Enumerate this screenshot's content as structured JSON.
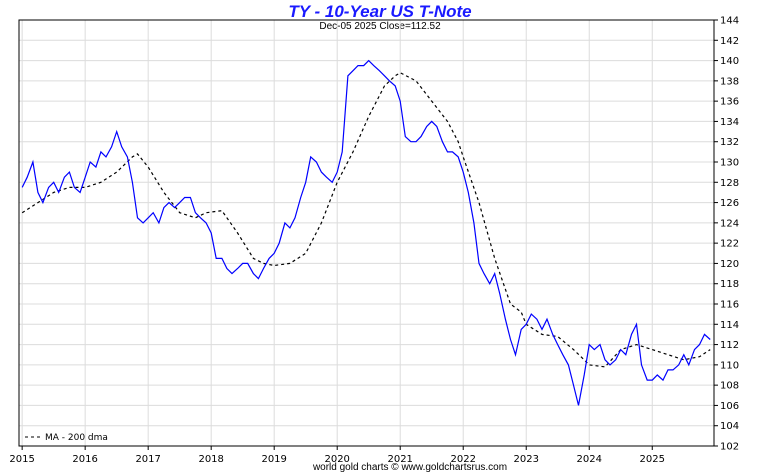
{
  "chart_data": {
    "type": "line",
    "title": "TY  -  10-Year US T-Note",
    "subtitle": "Dec-05  2025   Close=112.52",
    "footer": "world gold charts © www.goldchartsrus.com",
    "xlabel": "",
    "ylabel": "",
    "x_ticks": [
      "2015",
      "2016",
      "2017",
      "2018",
      "2019",
      "2020",
      "2021",
      "2022",
      "2023",
      "2024",
      "2025"
    ],
    "y_ticks": [
      102,
      104,
      106,
      108,
      110,
      112,
      114,
      116,
      118,
      120,
      122,
      124,
      126,
      128,
      130,
      132,
      134,
      136,
      138,
      140,
      142,
      144
    ],
    "xlim": [
      2014.95,
      2025.98
    ],
    "ylim": [
      102,
      144
    ],
    "grid": true,
    "legend": {
      "position": "bottom-left",
      "entries": [
        "MA - 200 dma"
      ]
    },
    "colors": {
      "price": "#0000ff",
      "ma": "#000000",
      "title": "#1a1aff",
      "grid": "#dcdcdc"
    },
    "series": [
      {
        "type": "price",
        "x": [
          2015.0,
          2015.08,
          2015.17,
          2015.25,
          2015.33,
          2015.42,
          2015.5,
          2015.58,
          2015.67,
          2015.75,
          2015.83,
          2015.92,
          2016.0,
          2016.08,
          2016.17,
          2016.25,
          2016.33,
          2016.42,
          2016.5,
          2016.58,
          2016.67,
          2016.75,
          2016.83,
          2016.92,
          2017.0,
          2017.08,
          2017.17,
          2017.25,
          2017.33,
          2017.42,
          2017.5,
          2017.58,
          2017.67,
          2017.75,
          2017.83,
          2017.92,
          2018.0,
          2018.08,
          2018.17,
          2018.25,
          2018.33,
          2018.42,
          2018.5,
          2018.58,
          2018.67,
          2018.75,
          2018.83,
          2018.92,
          2019.0,
          2019.08,
          2019.17,
          2019.25,
          2019.33,
          2019.42,
          2019.5,
          2019.58,
          2019.67,
          2019.75,
          2019.83,
          2019.92,
          2020.0,
          2020.08,
          2020.17,
          2020.25,
          2020.33,
          2020.42,
          2020.5,
          2020.58,
          2020.67,
          2020.75,
          2020.83,
          2020.92,
          2021.0,
          2021.08,
          2021.17,
          2021.25,
          2021.33,
          2021.42,
          2021.5,
          2021.58,
          2021.67,
          2021.75,
          2021.83,
          2021.92,
          2022.0,
          2022.08,
          2022.17,
          2022.25,
          2022.33,
          2022.42,
          2022.5,
          2022.58,
          2022.67,
          2022.75,
          2022.83,
          2022.92,
          2023.0,
          2023.08,
          2023.17,
          2023.25,
          2023.33,
          2023.42,
          2023.5,
          2023.58,
          2023.67,
          2023.75,
          2023.83,
          2023.92,
          2024.0,
          2024.08,
          2024.17,
          2024.25,
          2024.33,
          2024.42,
          2024.5,
          2024.58,
          2024.67,
          2024.75,
          2024.83,
          2024.92,
          2025.0,
          2025.08,
          2025.17,
          2025.25,
          2025.33,
          2025.42,
          2025.5,
          2025.58,
          2025.67,
          2025.75,
          2025.83,
          2025.92
        ],
        "y": [
          127.5,
          128.5,
          130.0,
          127.0,
          126.0,
          127.5,
          128.0,
          127.0,
          128.5,
          129.0,
          127.5,
          127.0,
          128.5,
          130.0,
          129.5,
          131.0,
          130.5,
          131.5,
          133.0,
          131.5,
          130.5,
          128.0,
          124.5,
          124.0,
          124.5,
          125.0,
          124.0,
          125.5,
          126.0,
          125.5,
          126.0,
          126.5,
          126.5,
          125.0,
          124.5,
          124.0,
          123.0,
          120.5,
          120.5,
          119.5,
          119.0,
          119.5,
          120.0,
          120.0,
          119.0,
          118.5,
          119.5,
          120.5,
          121.0,
          122.0,
          124.0,
          123.5,
          124.5,
          126.5,
          128.0,
          130.5,
          130.0,
          129.0,
          128.5,
          128.0,
          129.0,
          131.0,
          138.5,
          139.0,
          139.5,
          139.5,
          140.0,
          139.5,
          139.0,
          138.5,
          138.0,
          137.5,
          136.0,
          132.5,
          132.0,
          132.0,
          132.5,
          133.5,
          134.0,
          133.5,
          132.0,
          131.0,
          131.0,
          130.5,
          129.0,
          127.0,
          124.0,
          120.0,
          119.0,
          118.0,
          119.0,
          117.0,
          114.5,
          112.5,
          111.0,
          113.5,
          114.0,
          115.0,
          114.5,
          113.5,
          114.5,
          113.0,
          112.0,
          111.0,
          110.0,
          108.0,
          106.0,
          109.0,
          112.0,
          111.5,
          112.0,
          110.5,
          110.0,
          110.5,
          111.5,
          111.0,
          113.0,
          114.0,
          110.0,
          108.5,
          108.5,
          109.0,
          108.5,
          109.5,
          109.5,
          110.0,
          111.0,
          110.0,
          111.5,
          112.0,
          113.0,
          112.5
        ]
      },
      {
        "type": "ma",
        "name": "MA - 200 dma",
        "x": [
          2015.0,
          2015.25,
          2015.5,
          2015.75,
          2016.0,
          2016.25,
          2016.5,
          2016.75,
          2016.83,
          2017.0,
          2017.25,
          2017.5,
          2017.75,
          2017.92,
          2018.17,
          2018.42,
          2018.67,
          2018.83,
          2019.0,
          2019.25,
          2019.5,
          2019.75,
          2020.0,
          2020.25,
          2020.5,
          2020.75,
          2020.92,
          2021.0,
          2021.25,
          2021.5,
          2021.75,
          2021.92,
          2022.0,
          2022.25,
          2022.5,
          2022.75,
          2022.92,
          2023.0,
          2023.25,
          2023.5,
          2023.75,
          2023.92,
          2024.0,
          2024.25,
          2024.5,
          2024.75,
          2025.0,
          2025.25,
          2025.5,
          2025.75,
          2025.92
        ],
        "y": [
          125.0,
          126.0,
          127.0,
          127.5,
          127.5,
          128.0,
          129.0,
          130.5,
          130.8,
          129.5,
          127.0,
          125.0,
          124.5,
          125.0,
          125.2,
          123.0,
          120.5,
          120.0,
          119.8,
          120.0,
          121.0,
          124.0,
          128.0,
          131.0,
          134.5,
          137.5,
          138.5,
          138.8,
          138.0,
          136.0,
          134.0,
          132.0,
          130.5,
          126.0,
          120.5,
          116.0,
          115.2,
          114.0,
          113.0,
          112.8,
          111.5,
          110.5,
          110.0,
          109.8,
          111.5,
          112.0,
          111.5,
          111.0,
          110.5,
          110.8,
          111.5
        ]
      }
    ]
  }
}
